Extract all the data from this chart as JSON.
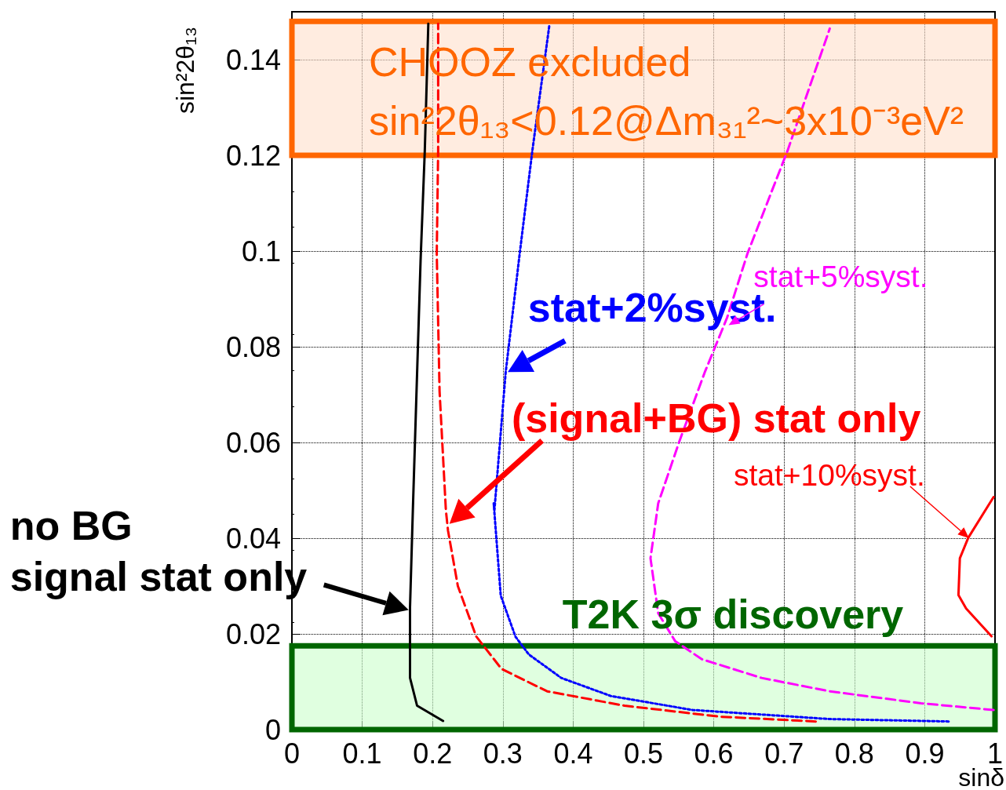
{
  "chart_data": {
    "type": "line",
    "xlabel": "sinδ",
    "ylabel": "sin²2θ₁₃",
    "xlim": [
      0,
      1
    ],
    "ylim": [
      0,
      0.15
    ],
    "xticks": [
      0,
      0.1,
      0.2,
      0.3,
      0.4,
      0.5,
      0.6,
      0.7,
      0.8,
      0.9,
      1
    ],
    "yticks": [
      0,
      0.02,
      0.04,
      0.06,
      0.08,
      0.1,
      0.12,
      0.14
    ],
    "grid": true,
    "series": [
      {
        "color": "#000000",
        "line_style": "solid",
        "x": [
          0.215,
          0.178,
          0.168,
          0.168,
          0.172,
          0.183,
          0.189,
          0.194
        ],
        "values": [
          0.0018,
          0.005,
          0.0108,
          0.0257,
          0.0458,
          0.098,
          0.121,
          0.1475
        ]
      },
      {
        "color": "#ff0000",
        "line_style": "dashed",
        "x": [
          0.745,
          0.609,
          0.473,
          0.363,
          0.298,
          0.262,
          0.236,
          0.222,
          0.219,
          0.21,
          0.206,
          0.208,
          0.208
        ],
        "values": [
          0.0017,
          0.0027,
          0.005,
          0.008,
          0.0127,
          0.0195,
          0.03,
          0.0416,
          0.0458,
          0.0707,
          0.0995,
          0.121,
          0.1475
        ]
      },
      {
        "color": "#0000ff",
        "line_style": "dotted",
        "x": [
          0.934,
          0.765,
          0.57,
          0.454,
          0.383,
          0.337,
          0.318,
          0.297,
          0.287,
          0.288,
          0.304,
          0.324,
          0.342,
          0.366
        ],
        "values": [
          0.0017,
          0.0022,
          0.0041,
          0.007,
          0.0108,
          0.0157,
          0.0194,
          0.028,
          0.0473,
          0.0458,
          0.0746,
          0.0995,
          0.121,
          0.147
        ]
      },
      {
        "color": "#ff00ff",
        "line_style": "dashed",
        "x": [
          0.998,
          0.895,
          0.765,
          0.668,
          0.583,
          0.545,
          0.521,
          0.51,
          0.521,
          0.551,
          0.587,
          0.619,
          0.648,
          0.705,
          0.765
        ],
        "values": [
          0.0041,
          0.0055,
          0.008,
          0.0108,
          0.0147,
          0.0185,
          0.0243,
          0.0358,
          0.0473,
          0.0602,
          0.0746,
          0.0861,
          0.0995,
          0.121,
          0.1465
        ]
      },
      {
        "color": "#ff0000",
        "line_style": "solid",
        "x": [
          0.995,
          0.959,
          0.948,
          0.95,
          0.962,
          0.998
        ],
        "values": [
          0.0195,
          0.0253,
          0.0281,
          0.0358,
          0.0401,
          0.0486
        ]
      }
    ],
    "bands": [
      {
        "axis": "y",
        "from": 0.12,
        "to": 0.148,
        "color": "#ff6600",
        "label": "CHOOZ excluded\nsin²2θ₁₃<0.12@Δm₃₁²~3x10⁻³eV²"
      },
      {
        "axis": "y",
        "from": 0,
        "to": 0.0175,
        "color": "#006600",
        "label": "T2K 3σ discovery"
      }
    ],
    "annotations": [
      {
        "text": "no BG\nsignal stat only",
        "x": 0.166,
        "y": 0.025
      },
      {
        "text": "(signal+BG) stat only",
        "x": 0.224,
        "y": 0.043
      },
      {
        "text": "stat+2%syst.",
        "x": 0.307,
        "y": 0.0747
      },
      {
        "text": "stat+5%syst.",
        "x": 0.621,
        "y": 0.0845
      },
      {
        "text": "stat+10%syst.",
        "x": 0.963,
        "y": 0.04
      }
    ]
  }
}
